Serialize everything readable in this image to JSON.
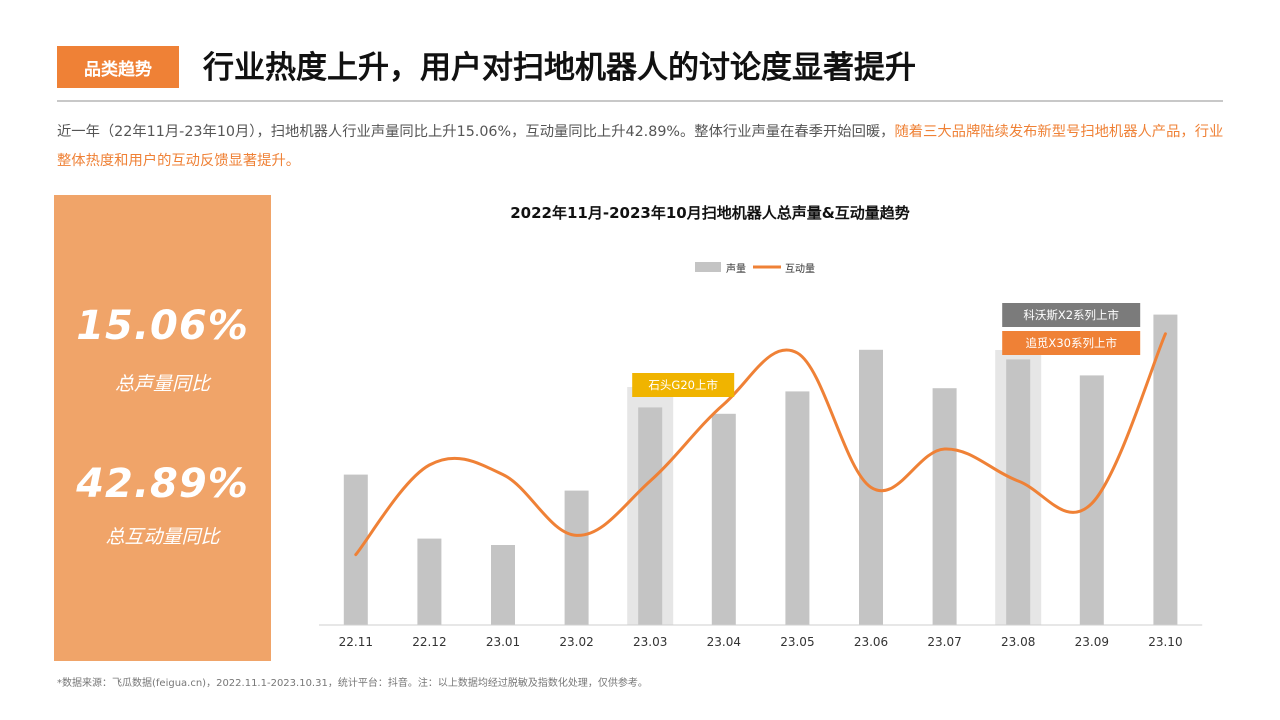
{
  "header": {
    "tag": "品类趋势",
    "title": "行业热度上升，用户对扫地机器人的讨论度显著提升"
  },
  "summary": {
    "normal": "近一年（22年11月-23年10月），扫地机器人行业声量同比上升15.06%，互动量同比上升42.89%。整体行业声量在春季开始回暖，",
    "highlight": "随着三大品牌陆续发布新型号扫地机器人产品，行业整体热度和用户的互动反馈显著提升。"
  },
  "kpis": [
    {
      "value": "15.06%",
      "label": "总声量同比"
    },
    {
      "value": "42.89%",
      "label": "总互动量同比"
    }
  ],
  "footnote": "*数据来源：飞瓜数据(feigua.cn)，2022.11.1-2023.10.31，统计平台：抖音。注：以上数据均经过脱敏及指数化处理，仅供参考。",
  "colors": {
    "accent": "#ef8136",
    "bar": "#c4c4c4",
    "highlight_band": "#e6e6e6",
    "yellow_callout": "#f0b400",
    "gray_callout": "#7b7b7b"
  },
  "chart_data": {
    "type": "bar",
    "title": "2022年11月-2023年10月扫地机器人总声量&互动量趋势",
    "categories": [
      "22.11",
      "22.12",
      "23.01",
      "23.02",
      "23.03",
      "23.04",
      "23.05",
      "23.06",
      "23.07",
      "23.08",
      "23.09",
      "23.10"
    ],
    "series": [
      {
        "name": "声量",
        "type": "bar",
        "values": [
          47,
          27,
          25,
          42,
          68,
          66,
          73,
          86,
          74,
          83,
          78,
          97
        ]
      },
      {
        "name": "互动量",
        "type": "line",
        "values": [
          22,
          50,
          47,
          28,
          45,
          69,
          85,
          43,
          55,
          45,
          38,
          91
        ]
      }
    ],
    "ylim": [
      0,
      100
    ],
    "legend": "top-center",
    "grid": false,
    "annotations": [
      {
        "category": "23.03",
        "texts": [
          "石头G20上市"
        ],
        "colors": [
          "#f0b400"
        ]
      },
      {
        "category": "23.08",
        "texts": [
          "科沃斯X2系列上市",
          "追觅X30系列上市"
        ],
        "colors": [
          "#7b7b7b",
          "#ef8136"
        ]
      }
    ]
  }
}
